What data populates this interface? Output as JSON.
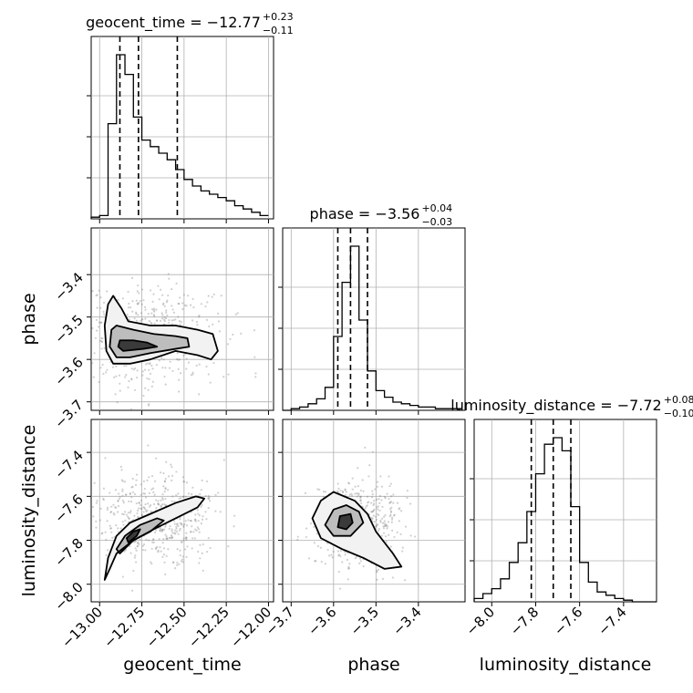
{
  "chart_data": {
    "type": "corner",
    "parameters": [
      "geocent_time",
      "phase",
      "luminosity_distance"
    ],
    "titles": {
      "geocent_time": {
        "label": "geocent_time",
        "median": "−12.77",
        "plus": "+0.23",
        "minus": "−0.11"
      },
      "phase": {
        "label": "phase",
        "median": "−3.56",
        "plus": "+0.04",
        "minus": "−0.03"
      },
      "luminosity_distance": {
        "label": "luminosity_distance",
        "median": "−7.72",
        "plus": "+0.08",
        "minus": "−0.10"
      }
    },
    "axis_labels": {
      "geocent_time": "geocent_time",
      "phase": "phase",
      "luminosity_distance": "luminosity_distance"
    },
    "ranges": {
      "geocent_time": [
        -13.05,
        -11.97
      ],
      "phase": [
        -3.72,
        -3.29
      ],
      "luminosity_distance": [
        -8.08,
        -7.25
      ]
    },
    "ticks": {
      "geocent_time": [
        -13.0,
        -12.75,
        -12.5,
        -12.25,
        -12.0
      ],
      "phase": [
        -3.7,
        -3.6,
        -3.5,
        -3.4
      ],
      "luminosity_distance": [
        -8.0,
        -7.8,
        -7.6,
        -7.4
      ]
    },
    "tick_labels": {
      "geocent_time": [
        "−13.00",
        "−12.75",
        "−12.50",
        "−12.25",
        "−12.00"
      ],
      "phase": [
        "−3.7",
        "−3.6",
        "−3.5",
        "−3.4"
      ],
      "luminosity_distance": [
        "−8.0",
        "−7.8",
        "−7.6",
        "−7.4"
      ]
    },
    "quantiles": {
      "geocent_time": [
        -12.88,
        -12.77,
        -12.54
      ],
      "phase": [
        -3.59,
        -3.56,
        -3.52
      ],
      "luminosity_distance": [
        -7.82,
        -7.72,
        -7.64
      ]
    },
    "histograms": {
      "geocent_time": {
        "bin_edges": [
          -13.05,
          -13.0,
          -12.95,
          -12.9,
          -12.85,
          -12.8,
          -12.75,
          -12.7,
          -12.65,
          -12.6,
          -12.55,
          -12.5,
          -12.45,
          -12.4,
          -12.35,
          -12.3,
          -12.25,
          -12.2,
          -12.15,
          -12.1,
          -12.05,
          -12.0
        ],
        "counts": [
          0.01,
          0.02,
          0.58,
          1.0,
          0.88,
          0.62,
          0.48,
          0.44,
          0.4,
          0.36,
          0.3,
          0.24,
          0.2,
          0.17,
          0.15,
          0.13,
          0.11,
          0.08,
          0.06,
          0.04,
          0.02
        ]
      },
      "phase": {
        "bin_edges": [
          -3.72,
          -3.7,
          -3.68,
          -3.66,
          -3.64,
          -3.62,
          -3.6,
          -3.58,
          -3.56,
          -3.54,
          -3.52,
          -3.5,
          -3.48,
          -3.46,
          -3.44,
          -3.42,
          -3.4,
          -3.38,
          -3.36,
          -3.34,
          -3.32,
          -3.3
        ],
        "counts": [
          0.0,
          0.01,
          0.02,
          0.04,
          0.07,
          0.14,
          0.45,
          0.78,
          1.0,
          0.55,
          0.24,
          0.12,
          0.08,
          0.05,
          0.04,
          0.03,
          0.02,
          0.02,
          0.01,
          0.01,
          0.01
        ]
      },
      "luminosity_distance": {
        "bin_edges": [
          -8.08,
          -8.04,
          -8.0,
          -7.96,
          -7.92,
          -7.88,
          -7.84,
          -7.8,
          -7.76,
          -7.72,
          -7.68,
          -7.64,
          -7.6,
          -7.56,
          -7.52,
          -7.48,
          -7.44,
          -7.4,
          -7.36,
          -7.32,
          -7.28,
          -7.25
        ],
        "counts": [
          0.02,
          0.05,
          0.08,
          0.14,
          0.24,
          0.36,
          0.55,
          0.78,
          0.96,
          1.0,
          0.92,
          0.58,
          0.24,
          0.12,
          0.06,
          0.04,
          0.02,
          0.01,
          0.0,
          0.0,
          0.0
        ]
      }
    },
    "pairs": [
      {
        "x": "geocent_time",
        "y": "phase",
        "contours": [
          [
            [
              -12.97,
              -3.52
            ],
            [
              -12.95,
              -3.47
            ],
            [
              -12.92,
              -3.45
            ],
            [
              -12.87,
              -3.48
            ],
            [
              -12.83,
              -3.51
            ],
            [
              -12.7,
              -3.52
            ],
            [
              -12.55,
              -3.52
            ],
            [
              -12.42,
              -3.53
            ],
            [
              -12.33,
              -3.54
            ],
            [
              -12.3,
              -3.58
            ],
            [
              -12.34,
              -3.6
            ],
            [
              -12.42,
              -3.59
            ],
            [
              -12.55,
              -3.58
            ],
            [
              -12.7,
              -3.6
            ],
            [
              -12.82,
              -3.61
            ],
            [
              -12.92,
              -3.61
            ],
            [
              -12.96,
              -3.58
            ],
            [
              -12.97,
              -3.52
            ]
          ],
          [
            [
              -12.93,
              -3.53
            ],
            [
              -12.9,
              -3.52
            ],
            [
              -12.8,
              -3.53
            ],
            [
              -12.68,
              -3.54
            ],
            [
              -12.55,
              -3.545
            ],
            [
              -12.48,
              -3.55
            ],
            [
              -12.47,
              -3.57
            ],
            [
              -12.55,
              -3.575
            ],
            [
              -12.7,
              -3.585
            ],
            [
              -12.82,
              -3.595
            ],
            [
              -12.9,
              -3.595
            ],
            [
              -12.94,
              -3.57
            ],
            [
              -12.93,
              -3.53
            ]
          ],
          [
            [
              -12.88,
              -3.555
            ],
            [
              -12.8,
              -3.555
            ],
            [
              -12.72,
              -3.56
            ],
            [
              -12.66,
              -3.57
            ],
            [
              -12.74,
              -3.575
            ],
            [
              -12.86,
              -3.58
            ],
            [
              -12.89,
              -3.57
            ],
            [
              -12.88,
              -3.555
            ]
          ]
        ],
        "scatter": {
          "mean": [
            -12.7,
            -3.55
          ],
          "std": [
            0.2,
            0.06
          ],
          "n": 520,
          "seed": 7
        }
      },
      {
        "x": "geocent_time",
        "y": "luminosity_distance",
        "contours": [
          [
            [
              -12.97,
              -7.98
            ],
            [
              -12.95,
              -7.88
            ],
            [
              -12.9,
              -7.78
            ],
            [
              -12.82,
              -7.72
            ],
            [
              -12.7,
              -7.68
            ],
            [
              -12.55,
              -7.63
            ],
            [
              -12.43,
              -7.6
            ],
            [
              -12.38,
              -7.61
            ],
            [
              -12.42,
              -7.65
            ],
            [
              -12.55,
              -7.7
            ],
            [
              -12.68,
              -7.75
            ],
            [
              -12.8,
              -7.8
            ],
            [
              -12.9,
              -7.86
            ],
            [
              -12.94,
              -7.93
            ],
            [
              -12.97,
              -7.98
            ]
          ],
          [
            [
              -12.9,
              -7.84
            ],
            [
              -12.85,
              -7.78
            ],
            [
              -12.76,
              -7.73
            ],
            [
              -12.66,
              -7.7
            ],
            [
              -12.62,
              -7.71
            ],
            [
              -12.7,
              -7.76
            ],
            [
              -12.8,
              -7.8
            ],
            [
              -12.88,
              -7.86
            ],
            [
              -12.9,
              -7.84
            ]
          ],
          [
            [
              -12.84,
              -7.79
            ],
            [
              -12.8,
              -7.76
            ],
            [
              -12.76,
              -7.75
            ],
            [
              -12.78,
              -7.78
            ],
            [
              -12.83,
              -7.81
            ],
            [
              -12.84,
              -7.79
            ]
          ]
        ],
        "scatter": {
          "mean": [
            -12.66,
            -7.7
          ],
          "std": [
            0.18,
            0.1
          ],
          "n": 520,
          "seed": 13
        }
      },
      {
        "x": "phase",
        "y": "luminosity_distance",
        "contours": [
          [
            [
              -3.63,
              -7.62
            ],
            [
              -3.6,
              -7.58
            ],
            [
              -3.55,
              -7.62
            ],
            [
              -3.52,
              -7.68
            ],
            [
              -3.5,
              -7.76
            ],
            [
              -3.46,
              -7.86
            ],
            [
              -3.44,
              -7.92
            ],
            [
              -3.48,
              -7.93
            ],
            [
              -3.53,
              -7.88
            ],
            [
              -3.58,
              -7.84
            ],
            [
              -3.63,
              -7.79
            ],
            [
              -3.65,
              -7.7
            ],
            [
              -3.63,
              -7.62
            ]
          ],
          [
            [
              -3.6,
              -7.66
            ],
            [
              -3.57,
              -7.64
            ],
            [
              -3.54,
              -7.67
            ],
            [
              -3.53,
              -7.72
            ],
            [
              -3.56,
              -7.78
            ],
            [
              -3.6,
              -7.78
            ],
            [
              -3.62,
              -7.73
            ],
            [
              -3.6,
              -7.66
            ]
          ],
          [
            [
              -3.585,
              -7.69
            ],
            [
              -3.56,
              -7.68
            ],
            [
              -3.555,
              -7.72
            ],
            [
              -3.57,
              -7.75
            ],
            [
              -3.59,
              -7.74
            ],
            [
              -3.585,
              -7.69
            ]
          ]
        ],
        "scatter": {
          "mean": [
            -3.55,
            -7.72
          ],
          "std": [
            0.05,
            0.1
          ],
          "n": 520,
          "seed": 29
        }
      }
    ]
  }
}
